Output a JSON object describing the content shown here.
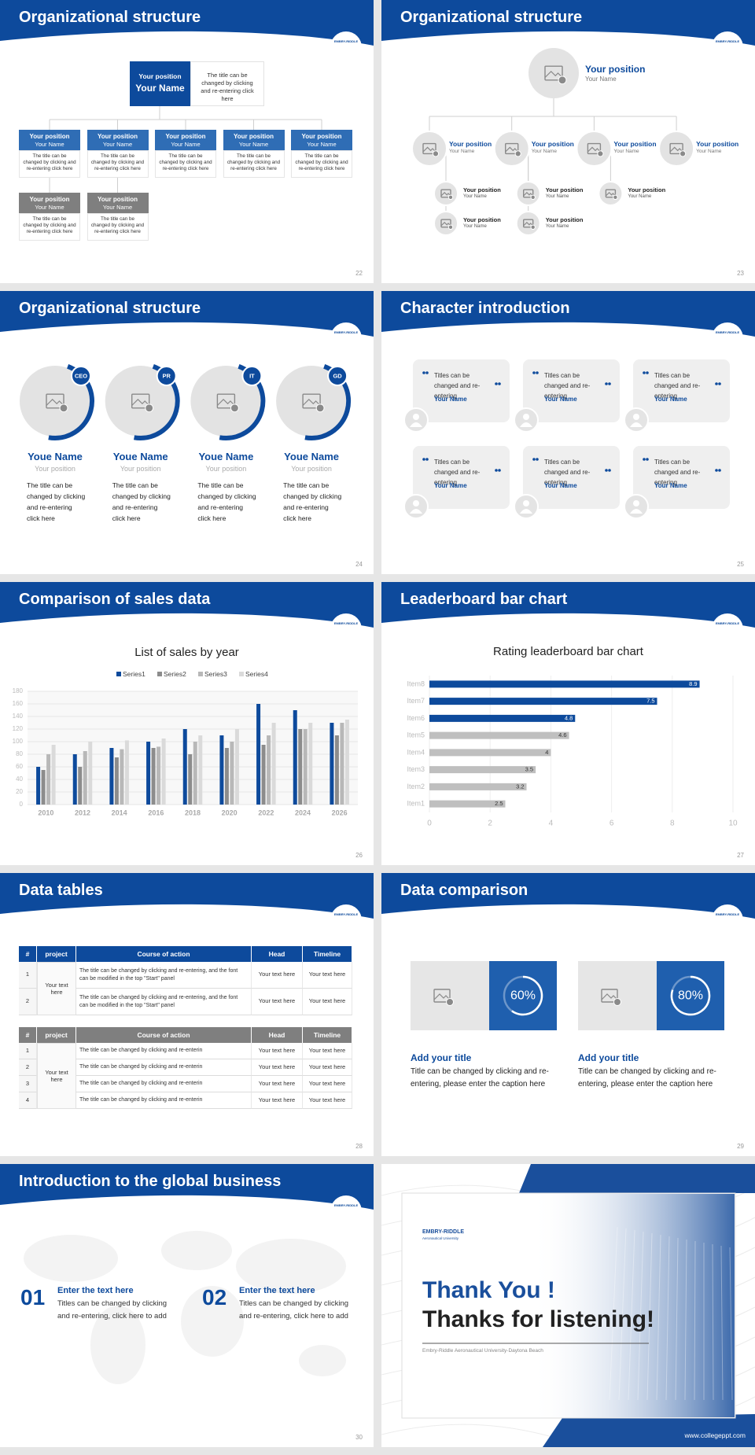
{
  "logo": "EMBRY-RIDDLE",
  "slides": [
    {
      "title": "Organizational structure",
      "number": 22,
      "head": {
        "position": "Your position",
        "name": "Your Name",
        "text": "The title can be changed by clicking and re-entering click here"
      },
      "members": [
        {
          "position": "Your position",
          "name": "Your Name",
          "text": "The title can be changed by clicking and re-entering click here",
          "color": "#2f6db5"
        },
        {
          "position": "Your position",
          "name": "Your Name",
          "text": "The title can be changed by clicking and re-entering click here",
          "color": "#2f6db5"
        },
        {
          "position": "Your position",
          "name": "Your Name",
          "text": "The title can be changed by clicking and re-entering click here",
          "color": "#2f6db5"
        },
        {
          "position": "Your position",
          "name": "Your Name",
          "text": "The title can be changed by clicking and re-entering click here",
          "color": "#2f6db5"
        },
        {
          "position": "Your position",
          "name": "Your Name",
          "text": "The title can be changed by clicking and re-entering click here",
          "color": "#2f6db5"
        },
        {
          "position": "Your position",
          "name": "Your Name",
          "text": "The title can be changed by clicking and re-entering click here",
          "color": "#7f7f7f"
        },
        {
          "position": "Your position",
          "name": "Your Name",
          "text": "The title can be changed by clicking and re-entering click here",
          "color": "#7f7f7f"
        }
      ]
    },
    {
      "title": "Organizational structure",
      "number": 23,
      "head": {
        "position": "Your position",
        "name": "Your Name"
      },
      "branches": [
        {
          "position": "Your position",
          "name": "Your Name",
          "children": [
            {
              "position": "Your position",
              "name": "Your Name"
            },
            {
              "position": "Your position",
              "name": "Your Name"
            }
          ]
        },
        {
          "position": "Your position",
          "name": "Your Name",
          "children": [
            {
              "position": "Your position",
              "name": "Your Name"
            },
            {
              "position": "Your position",
              "name": "Your Name"
            }
          ]
        },
        {
          "position": "Your position",
          "name": "Your Name",
          "children": [
            {
              "position": "Your position",
              "name": "Your Name"
            }
          ]
        },
        {
          "position": "Your position",
          "name": "Your Name"
        }
      ]
    },
    {
      "title": "Organizational structure",
      "number": 24,
      "people": [
        {
          "tag": "CEO",
          "name": "Youe Name",
          "position": "Your position",
          "text": "The title can be changed by clicking and re-entering click here"
        },
        {
          "tag": "PR",
          "name": "Youe Name",
          "position": "Your position",
          "text": "The title can be changed by clicking and re-entering click here"
        },
        {
          "tag": "IT",
          "name": "Youe Name",
          "position": "Your position",
          "text": "The title can be changed by clicking and re-entering click here"
        },
        {
          "tag": "GD",
          "name": "Youe Name",
          "position": "Your position",
          "text": "The title can be changed by clicking and re-entering click here"
        }
      ]
    },
    {
      "title": "Character introduction",
      "number": 25,
      "cards": [
        {
          "text": "Titles can be changed and re-entering",
          "name": "Your Name"
        },
        {
          "text": "Titles can be changed and re-entering",
          "name": "Your Name"
        },
        {
          "text": "Titles can be changed and re-entering",
          "name": "Your Name"
        },
        {
          "text": "Titles can be changed and re-entering",
          "name": "Your Name"
        },
        {
          "text": "Titles can be changed and re-entering",
          "name": "Your Name"
        },
        {
          "text": "Titles can be changed and re-entering",
          "name": "Your Name"
        }
      ]
    },
    {
      "title": "Comparison of sales data",
      "number": 26
    },
    {
      "title": "Leaderboard bar chart",
      "number": 27
    },
    {
      "title": "Data tables",
      "number": 28,
      "tables": [
        {
          "color": "#0d4a9c",
          "header": [
            "#",
            "project",
            "Course of action",
            "Head",
            "Timeline"
          ],
          "project": "Your text here",
          "rows": [
            [
              1,
              "The title can be changed by clicking and re-entering, and the font can be modified in the top \"Start\" panel",
              "Your text here",
              "Your text here"
            ],
            [
              2,
              "The title can be changed by clicking and re-entering, and the font can be modified in the top \"Start\" panel",
              "Your text here",
              "Your text here"
            ]
          ]
        },
        {
          "color": "#7f7f7f",
          "header": [
            "#",
            "project",
            "Course of action",
            "Head",
            "Timeline"
          ],
          "project": "Your text here",
          "rows": [
            [
              1,
              "The title can be changed by clicking and re-enterin",
              "Your text here",
              "Your text here"
            ],
            [
              2,
              "The title can be changed by clicking and re-enterin",
              "Your text here",
              "Your text here"
            ],
            [
              3,
              "The title can be changed by clicking and re-enterin",
              "Your text here",
              "Your text here"
            ],
            [
              4,
              "The title can be changed by clicking and re-enterin",
              "Your text here",
              "Your text here"
            ]
          ]
        }
      ]
    },
    {
      "title": "Data comparison",
      "number": 29,
      "cards": [
        {
          "percent": {
            "value": 60,
            "label": "60%"
          },
          "title": "Add your title",
          "text": "Title can be changed by clicking and re-entering, please enter the caption here"
        },
        {
          "percent": {
            "value": 80,
            "label": "80%"
          },
          "title": "Add your title",
          "text": "Title can be changed by clicking and re-entering, please enter the caption here"
        }
      ]
    },
    {
      "title": "Introduction to the global business",
      "number": 30,
      "items": [
        {
          "index": "01",
          "title": "Enter the text here",
          "text": "Titles can be changed by clicking and re-entering, click here to add"
        },
        {
          "index": "02",
          "title": "Enter the text here",
          "text": "Titles can be changed by clicking and re-entering, click here to add"
        }
      ]
    },
    {
      "logo": "EMBRY-RIDDLE",
      "logo_sub": "Aeronautical University",
      "thanks": "Thank You !",
      "headline": "Thanks for listening!",
      "subtitle": "Embry-Riddle Aeronautical University-Daytona Beach",
      "url": "www.collegeppt.com"
    }
  ],
  "chart_data": [
    {
      "type": "bar",
      "title": "List of sales by year",
      "categories": [
        "2010",
        "2012",
        "2014",
        "2016",
        "2018",
        "2020",
        "2022",
        "2024",
        "2026"
      ],
      "series": [
        {
          "name": "Series1",
          "color": "#0d4a9c",
          "values": [
            60,
            80,
            90,
            100,
            120,
            110,
            160,
            150,
            130
          ]
        },
        {
          "name": "Series2",
          "color": "#8c8c8c",
          "values": [
            55,
            60,
            75,
            90,
            80,
            90,
            95,
            120,
            110
          ]
        },
        {
          "name": "Series3",
          "color": "#b8b8b8",
          "values": [
            80,
            85,
            88,
            92,
            100,
            100,
            110,
            120,
            130
          ]
        },
        {
          "name": "Series4",
          "color": "#dadada",
          "values": [
            95,
            100,
            102,
            105,
            110,
            120,
            130,
            130,
            135
          ]
        }
      ],
      "ylim": [
        0,
        180
      ],
      "yticks": [
        0,
        20,
        40,
        60,
        80,
        100,
        120,
        140,
        160,
        180
      ],
      "grid": true,
      "legend": "top"
    },
    {
      "type": "bar",
      "orientation": "horizontal",
      "title": "Rating leaderboard bar chart",
      "categories": [
        "Item1",
        "Item2",
        "Item3",
        "Item4",
        "Item5",
        "Item6",
        "Item7",
        "Item8"
      ],
      "values": [
        2.5,
        3.2,
        3.5,
        4,
        4.6,
        4.8,
        7.5,
        8.9
      ],
      "colors": [
        "#bfbfbf",
        "#bfbfbf",
        "#bfbfbf",
        "#bfbfbf",
        "#bfbfbf",
        "#0d4a9c",
        "#0d4a9c",
        "#0d4a9c"
      ],
      "xlim": [
        0,
        10
      ],
      "xticks": [
        0,
        2,
        4,
        6,
        8,
        10
      ],
      "grid": true
    }
  ]
}
